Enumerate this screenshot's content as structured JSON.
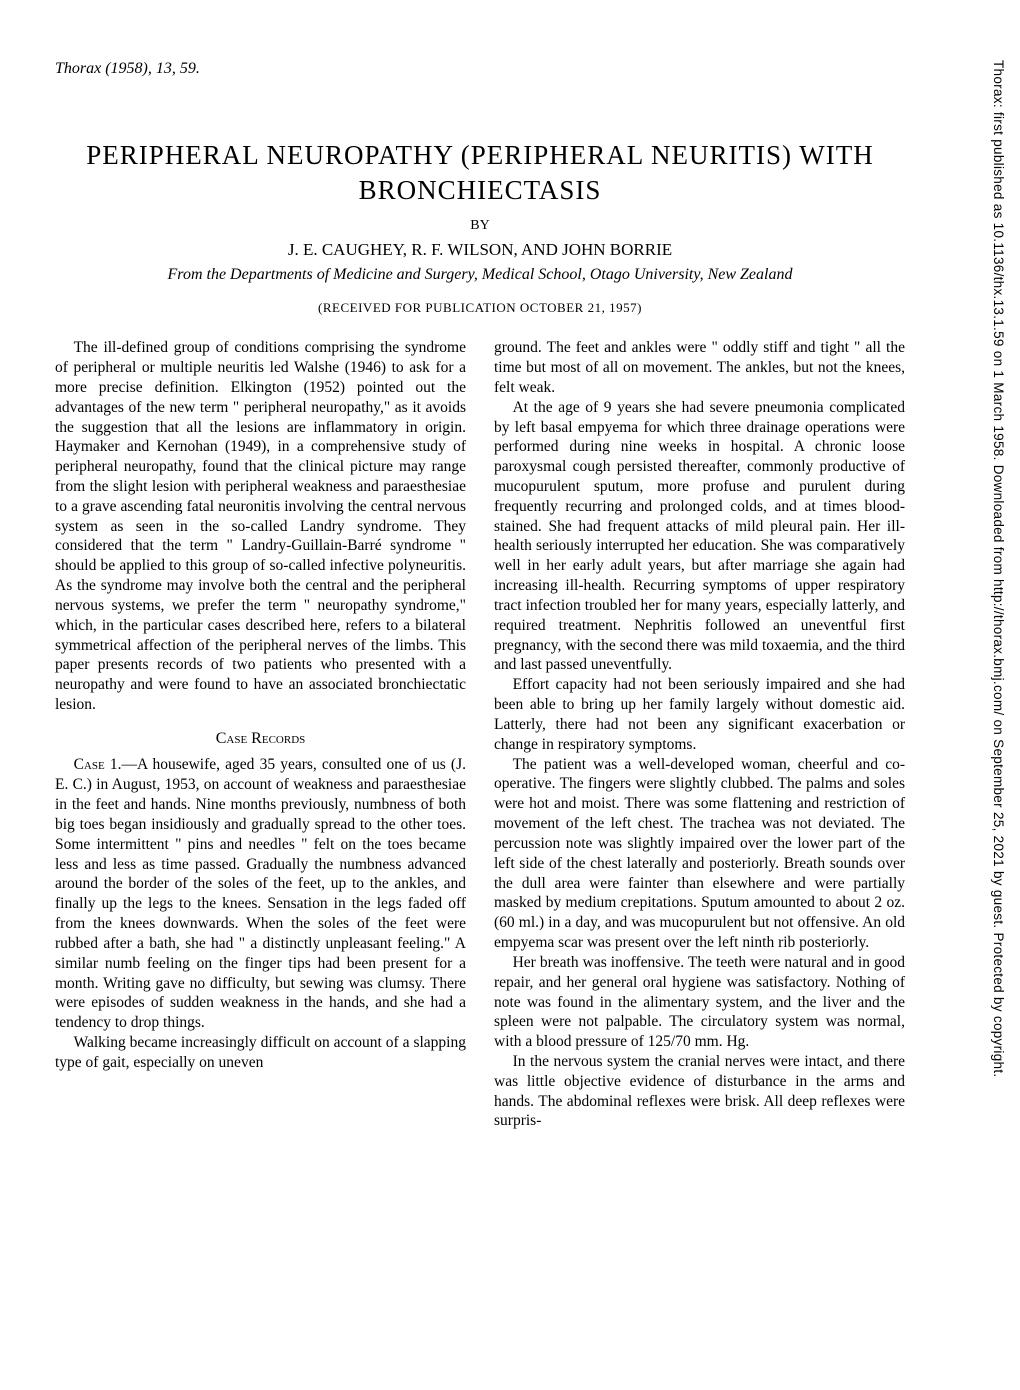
{
  "citation": "Thorax (1958), 13, 59.",
  "title_line1": "PERIPHERAL NEUROPATHY (PERIPHERAL NEURITIS) WITH",
  "title_line2": "BRONCHIECTASIS",
  "by": "BY",
  "authors": "J. E. CAUGHEY, R. F. WILSON, AND JOHN BORRIE",
  "affiliation": "From the Departments of Medicine and Surgery, Medical School, Otago University, New Zealand",
  "received": "(RECEIVED FOR PUBLICATION OCTOBER 21, 1957)",
  "left_column": {
    "p1": "The ill-defined group of conditions comprising the syndrome of peripheral or multiple neuritis led Walshe (1946) to ask for a more precise definition. Elkington (1952) pointed out the advantages of the new term \" peripheral neuropathy,\" as it avoids the suggestion that all the lesions are inflammatory in origin. Haymaker and Kernohan (1949), in a comprehensive study of peripheral neuropathy, found that the clinical picture may range from the slight lesion with peripheral weakness and paraesthesiae to a grave ascending fatal neuronitis involving the central nervous system as seen in the so-called Landry syndrome. They considered that the term \" Landry-Guillain-Barré syndrome \" should be applied to this group of so-called infective polyneuritis. As the syndrome may involve both the central and the peripheral nervous systems, we prefer the term \" neuropathy syndrome,\" which, in the particular cases described here, refers to a bilateral symmetrical affection of the peripheral nerves of the limbs. This paper presents records of two patients who presented with a neuropathy and were found to have an associated bronchiectatic lesion.",
    "heading": "Case Records",
    "case_label": "Case 1.—",
    "p2": "A housewife, aged 35 years, consulted one of us (J. E. C.) in August, 1953, on account of weakness and paraesthesiae in the feet and hands. Nine months previously, numbness of both big toes began insidiously and gradually spread to the other toes. Some intermittent \" pins and needles \" felt on the toes became less and less as time passed. Gradually the numbness advanced around the border of the soles of the feet, up to the ankles, and finally up the legs to the knees. Sensation in the legs faded off from the knees downwards. When the soles of the feet were rubbed after a bath, she had \" a distinctly unpleasant feeling.\" A similar numb feeling on the finger tips had been present for a month. Writing gave no difficulty, but sewing was clumsy. There were episodes of sudden weakness in the hands, and she had a tendency to drop things.",
    "p3": "Walking became increasingly difficult on account of a slapping type of gait, especially on uneven"
  },
  "right_column": {
    "p1": "ground. The feet and ankles were \" oddly stiff and tight \" all the time but most of all on movement. The ankles, but not the knees, felt weak.",
    "p2": "At the age of 9 years she had severe pneumonia complicated by left basal empyema for which three drainage operations were performed during nine weeks in hospital. A chronic loose paroxysmal cough persisted thereafter, commonly productive of mucopurulent sputum, more profuse and purulent during frequently recurring and prolonged colds, and at times blood-stained. She had frequent attacks of mild pleural pain. Her ill-health seriously interrupted her education. She was comparatively well in her early adult years, but after marriage she again had increasing ill-health. Recurring symptoms of upper respiratory tract infection troubled her for many years, especially latterly, and required treatment. Nephritis followed an uneventful first pregnancy, with the second there was mild toxaemia, and the third and last passed uneventfully.",
    "p3": "Effort capacity had not been seriously impaired and she had been able to bring up her family largely without domestic aid. Latterly, there had not been any significant exacerbation or change in respiratory symptoms.",
    "p4": "The patient was a well-developed woman, cheerful and co-operative. The fingers were slightly clubbed. The palms and soles were hot and moist. There was some flattening and restriction of movement of the left chest. The trachea was not deviated. The percussion note was slightly impaired over the lower part of the left side of the chest laterally and posteriorly. Breath sounds over the dull area were fainter than elsewhere and were partially masked by medium crepitations. Sputum amounted to about 2 oz. (60 ml.) in a day, and was mucopurulent but not offensive. An old empyema scar was present over the left ninth rib posteriorly.",
    "p5": "Her breath was inoffensive. The teeth were natural and in good repair, and her general oral hygiene was satisfactory. Nothing of note was found in the alimentary system, and the liver and the spleen were not palpable. The circulatory system was normal, with a blood pressure of 125/70 mm. Hg.",
    "p6": "In the nervous system the cranial nerves were intact, and there was little objective evidence of disturbance in the arms and hands. The abdominal reflexes were brisk. All deep reflexes were surpris-"
  },
  "sidebar": "Thorax: first published as 10.1136/thx.13.1.59 on 1 March 1958. Downloaded from http://thorax.bmj.com/ on September 25, 2021 by guest. Protected by copyright."
}
